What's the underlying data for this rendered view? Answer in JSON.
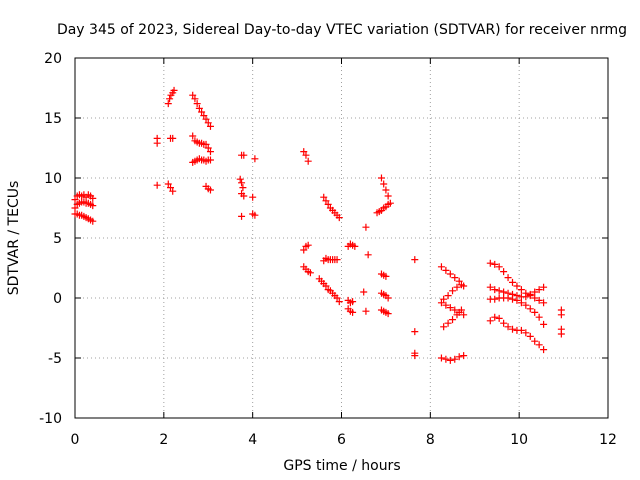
{
  "chart_data": {
    "type": "scatter",
    "title": "Day 345 of 2023, Sidereal Day-to-day VTEC variation (SDTVAR) for receiver nrmg",
    "xlabel": "GPS time / hours",
    "ylabel": "SDTVAR / TECUs",
    "xlim": [
      0,
      12
    ],
    "ylim": [
      -10,
      20
    ],
    "xticks": [
      "0",
      "2",
      "4",
      "6",
      "8",
      "10",
      "12"
    ],
    "yticks": [
      "-10",
      "-5",
      "0",
      "5",
      "10",
      "15",
      "20"
    ],
    "grid": true,
    "marker": "plus",
    "color": "#ff0000",
    "series": [
      {
        "name": "track-0a",
        "x": [
          0.0,
          0.05,
          0.1,
          0.15,
          0.2,
          0.25,
          0.3,
          0.35,
          0.4
        ],
        "y": [
          8.2,
          8.5,
          8.6,
          8.5,
          8.6,
          8.4,
          8.6,
          8.5,
          8.3
        ]
      },
      {
        "name": "track-0b",
        "x": [
          0.0,
          0.05,
          0.1,
          0.15,
          0.2,
          0.25,
          0.3,
          0.35,
          0.4
        ],
        "y": [
          7.5,
          7.8,
          7.9,
          8.0,
          8.0,
          7.9,
          7.9,
          7.8,
          7.7
        ]
      },
      {
        "name": "track-0c",
        "x": [
          0.0,
          0.05,
          0.1,
          0.15,
          0.2,
          0.25,
          0.3,
          0.35,
          0.4
        ],
        "y": [
          7.0,
          7.0,
          6.9,
          6.9,
          6.8,
          6.7,
          6.6,
          6.5,
          6.4
        ]
      },
      {
        "name": "track-1a",
        "x": [
          2.1,
          2.13,
          2.16,
          2.2,
          2.23
        ],
        "y": [
          16.2,
          16.6,
          16.9,
          17.1,
          17.3
        ]
      },
      {
        "name": "track-1b",
        "x": [
          1.85,
          1.85
        ],
        "y": [
          13.3,
          12.9
        ]
      },
      {
        "name": "track-1c",
        "x": [
          2.15,
          2.2
        ],
        "y": [
          13.3,
          13.3
        ]
      },
      {
        "name": "track-1d",
        "x": [
          1.85,
          2.1,
          2.15,
          2.2
        ],
        "y": [
          9.4,
          9.5,
          9.2,
          8.9
        ]
      },
      {
        "name": "track-2a",
        "x": [
          2.65,
          2.7,
          2.75,
          2.8,
          2.85,
          2.9,
          2.95,
          3.0,
          3.05
        ],
        "y": [
          16.9,
          16.6,
          16.2,
          15.8,
          15.5,
          15.2,
          14.9,
          14.6,
          14.3
        ]
      },
      {
        "name": "track-2b",
        "x": [
          2.65,
          2.7,
          2.75,
          2.8,
          2.85,
          2.9,
          2.95,
          3.0,
          3.05
        ],
        "y": [
          13.5,
          13.1,
          13.0,
          12.9,
          12.9,
          12.8,
          12.8,
          12.5,
          12.2
        ]
      },
      {
        "name": "track-2c",
        "x": [
          2.65,
          2.7,
          2.75,
          2.8,
          2.85,
          2.9,
          2.95,
          3.0,
          3.05
        ],
        "y": [
          11.3,
          11.4,
          11.5,
          11.6,
          11.5,
          11.5,
          11.4,
          11.5,
          11.5
        ]
      },
      {
        "name": "track-2d",
        "x": [
          2.95,
          3.0,
          3.05
        ],
        "y": [
          9.3,
          9.1,
          9.0
        ]
      },
      {
        "name": "track-3a",
        "x": [
          3.75,
          3.8
        ],
        "y": [
          11.9,
          11.9
        ]
      },
      {
        "name": "track-3b",
        "x": [
          3.72,
          3.75,
          3.78
        ],
        "y": [
          9.9,
          9.6,
          9.2
        ]
      },
      {
        "name": "track-3c",
        "x": [
          3.75,
          3.8
        ],
        "y": [
          8.7,
          8.5
        ]
      },
      {
        "name": "track-3d",
        "x": [
          3.75,
          4.0,
          4.05
        ],
        "y": [
          6.8,
          7.0,
          6.9
        ]
      },
      {
        "name": "track-3e",
        "x": [
          4.05,
          4.0
        ],
        "y": [
          11.6,
          8.4
        ]
      },
      {
        "name": "track-4a",
        "x": [
          5.15,
          5.2,
          5.25
        ],
        "y": [
          12.2,
          11.9,
          11.4
        ]
      },
      {
        "name": "track-4b",
        "x": [
          5.6,
          5.65,
          5.7,
          5.75,
          5.8,
          5.85,
          5.9,
          5.95
        ],
        "y": [
          8.4,
          8.1,
          7.8,
          7.5,
          7.3,
          7.1,
          6.9,
          6.7
        ]
      },
      {
        "name": "track-4c",
        "x": [
          5.15,
          5.2,
          5.25
        ],
        "y": [
          4.0,
          4.3,
          4.4
        ]
      },
      {
        "name": "track-4d",
        "x": [
          5.6,
          5.65,
          5.7,
          5.75,
          5.8,
          5.85,
          5.9
        ],
        "y": [
          3.1,
          3.3,
          3.2,
          3.2,
          3.2,
          3.2,
          3.2
        ]
      },
      {
        "name": "track-4e",
        "x": [
          5.15,
          5.2,
          5.25,
          5.3
        ],
        "y": [
          2.6,
          2.4,
          2.2,
          2.1
        ]
      },
      {
        "name": "track-4f",
        "x": [
          5.5,
          5.55,
          5.6,
          5.65,
          5.7,
          5.75,
          5.8,
          5.85,
          5.9,
          5.95
        ],
        "y": [
          1.6,
          1.4,
          1.2,
          1.0,
          0.7,
          0.6,
          0.4,
          0.2,
          0.0,
          -0.3
        ]
      },
      {
        "name": "track-5a",
        "x": [
          6.15,
          6.2,
          6.25,
          6.3
        ],
        "y": [
          4.3,
          4.5,
          4.4,
          4.3
        ]
      },
      {
        "name": "track-5b",
        "x": [
          6.55,
          6.6
        ],
        "y": [
          5.9,
          3.6
        ]
      },
      {
        "name": "track-5c",
        "x": [
          6.15,
          6.2,
          6.25
        ],
        "y": [
          -0.2,
          -0.4,
          -0.3
        ]
      },
      {
        "name": "track-5d",
        "x": [
          6.15,
          6.2,
          6.25
        ],
        "y": [
          -0.9,
          -1.1,
          -1.2
        ]
      },
      {
        "name": "track-5e",
        "x": [
          6.5,
          6.55
        ],
        "y": [
          0.5,
          -1.1
        ]
      },
      {
        "name": "track-6a",
        "x": [
          6.9,
          6.95,
          7.0,
          7.05,
          7.1
        ],
        "y": [
          10.0,
          9.5,
          9.0,
          8.5,
          7.9
        ]
      },
      {
        "name": "track-6b",
        "x": [
          6.8,
          6.85,
          6.9,
          6.95,
          7.0,
          7.05
        ],
        "y": [
          7.1,
          7.2,
          7.3,
          7.5,
          7.6,
          7.8
        ]
      },
      {
        "name": "track-6c",
        "x": [
          6.9,
          6.95,
          7.0
        ],
        "y": [
          2.0,
          1.9,
          1.8
        ]
      },
      {
        "name": "track-6d",
        "x": [
          6.9,
          6.95,
          7.0,
          7.05
        ],
        "y": [
          0.4,
          0.3,
          0.2,
          0.0
        ]
      },
      {
        "name": "track-6e",
        "x": [
          6.9,
          6.95,
          7.0,
          7.05
        ],
        "y": [
          -1.0,
          -1.1,
          -1.2,
          -1.3
        ]
      },
      {
        "name": "track-6f",
        "x": [
          7.65,
          7.65
        ],
        "y": [
          3.2,
          -2.8
        ]
      },
      {
        "name": "track-6g",
        "x": [
          7.65,
          7.65
        ],
        "y": [
          -4.6,
          -4.8
        ]
      },
      {
        "name": "track-7a",
        "x": [
          8.25,
          8.35,
          8.45,
          8.55,
          8.65,
          8.75
        ],
        "y": [
          2.6,
          2.3,
          2.0,
          1.7,
          1.4,
          1.0
        ]
      },
      {
        "name": "track-7b",
        "x": [
          8.3,
          8.4,
          8.5,
          8.6,
          8.7
        ],
        "y": [
          -0.1,
          0.2,
          0.6,
          0.9,
          1.1
        ]
      },
      {
        "name": "track-7c",
        "x": [
          8.25,
          8.35,
          8.45,
          8.55,
          8.65,
          8.75
        ],
        "y": [
          -0.4,
          -0.6,
          -0.8,
          -1.0,
          -1.2,
          -1.4
        ]
      },
      {
        "name": "track-7d",
        "x": [
          8.3,
          8.4,
          8.5,
          8.6,
          8.7
        ],
        "y": [
          -2.4,
          -2.1,
          -1.8,
          -1.4,
          -1.0
        ]
      },
      {
        "name": "track-7e",
        "x": [
          8.25,
          8.35,
          8.45,
          8.55,
          8.65,
          8.75
        ],
        "y": [
          -5.0,
          -5.1,
          -5.2,
          -5.1,
          -4.9,
          -4.8
        ]
      },
      {
        "name": "track-8a",
        "x": [
          9.35,
          9.45,
          9.55,
          9.65,
          9.75,
          9.85,
          9.95,
          10.05,
          10.15,
          10.25,
          10.35,
          10.45,
          10.55
        ],
        "y": [
          2.9,
          2.8,
          2.6,
          2.2,
          1.7,
          1.3,
          1.0,
          0.7,
          0.4,
          0.2,
          0.0,
          -0.2,
          -0.4
        ]
      },
      {
        "name": "track-8b",
        "x": [
          9.35,
          9.45,
          9.55,
          9.65,
          9.75,
          9.85,
          9.95,
          10.05,
          10.15,
          10.25,
          10.35,
          10.45,
          10.55
        ],
        "y": [
          0.9,
          0.7,
          0.6,
          0.5,
          0.4,
          0.3,
          0.2,
          0.1,
          0.1,
          0.3,
          0.5,
          0.7,
          0.9
        ]
      },
      {
        "name": "track-8c",
        "x": [
          9.35,
          9.45,
          9.55,
          9.65,
          9.75,
          9.85,
          9.95,
          10.05,
          10.15,
          10.25,
          10.35,
          10.45,
          10.55
        ],
        "y": [
          -0.1,
          -0.1,
          0.0,
          0.0,
          0.0,
          -0.1,
          -0.2,
          -0.4,
          -0.6,
          -0.9,
          -1.2,
          -1.6,
          -2.2
        ]
      },
      {
        "name": "track-8d",
        "x": [
          9.35,
          9.45,
          9.55,
          9.65,
          9.75,
          9.85,
          9.95,
          10.05,
          10.15,
          10.25,
          10.35,
          10.45,
          10.55
        ],
        "y": [
          -1.9,
          -1.6,
          -1.7,
          -2.1,
          -2.4,
          -2.6,
          -2.7,
          -2.7,
          -2.9,
          -3.2,
          -3.6,
          -3.9,
          -4.3
        ]
      },
      {
        "name": "track-8e",
        "x": [
          10.95,
          10.95
        ],
        "y": [
          -1.0,
          -1.4
        ]
      },
      {
        "name": "track-8f",
        "x": [
          10.95,
          10.95
        ],
        "y": [
          -2.6,
          -3.0
        ]
      }
    ]
  }
}
